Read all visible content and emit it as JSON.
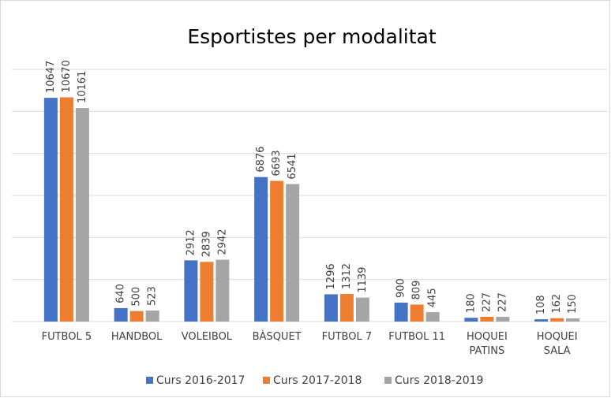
{
  "chart_data": {
    "type": "bar",
    "title": "Esportistes per modalitat",
    "categories": [
      "FUTBOL 5",
      "HANDBOL",
      "VOLEIBOL",
      "BÀSQUET",
      "FUTBOL 7",
      "FUTBOL 11",
      "HOQUEI\nPATINS",
      "HOQUEI\nSALA"
    ],
    "series": [
      {
        "name": "Curs 2016-2017",
        "color": "#4472c4",
        "values": [
          10647,
          640,
          2912,
          6876,
          1296,
          900,
          180,
          108
        ]
      },
      {
        "name": "Curs 2017-2018",
        "color": "#ed7d31",
        "values": [
          10670,
          500,
          2839,
          6693,
          1312,
          809,
          227,
          162
        ]
      },
      {
        "name": "Curs 2018-2019",
        "color": "#a5a5a5",
        "values": [
          10161,
          523,
          2942,
          6541,
          1139,
          445,
          227,
          150
        ]
      }
    ],
    "ylim": [
      0,
      12000
    ],
    "yticks": [
      0,
      2000,
      4000,
      6000,
      8000,
      10000,
      12000
    ],
    "grid": true,
    "legend": "bottom"
  }
}
